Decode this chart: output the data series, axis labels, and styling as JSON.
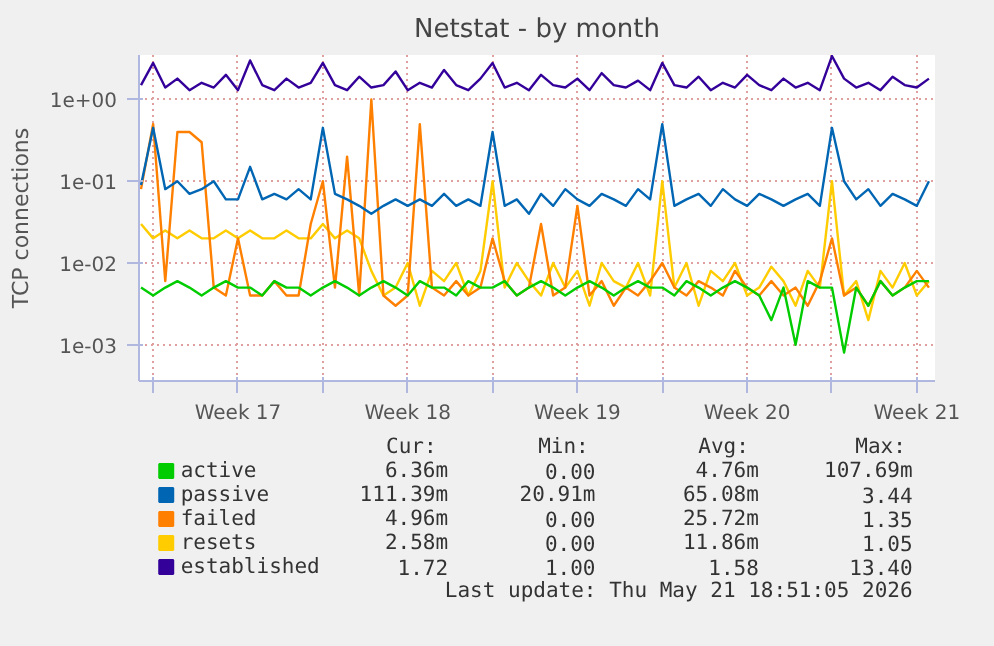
{
  "chart_data": {
    "type": "line",
    "title": "Netstat - by month",
    "ylabel": "TCP connections",
    "log": "y",
    "grid": true,
    "legend": "bottom",
    "marker": "none",
    "line_style": "solid",
    "ylim": [
      0.00036,
      3.5
    ],
    "yticks": [
      {
        "value": 0.001,
        "label": "1e-03"
      },
      {
        "value": 0.01,
        "label": "1e-02"
      },
      {
        "value": 0.1,
        "label": "1e-01"
      },
      {
        "value": 1,
        "label": "1e+00"
      }
    ],
    "xlim": [
      "2026-04-19T10:00",
      "2026-05-22T06:00"
    ],
    "xticks": [
      {
        "value": "2026-04-20",
        "label": null
      },
      {
        "value": "2026-04-23T12:00",
        "label": "Week 17"
      },
      {
        "value": "2026-04-27",
        "label": null
      },
      {
        "value": "2026-04-30T12:00",
        "label": "Week 18"
      },
      {
        "value": "2026-05-04",
        "label": null
      },
      {
        "value": "2026-05-07T12:00",
        "label": "Week 19"
      },
      {
        "value": "2026-05-11",
        "label": null
      },
      {
        "value": "2026-05-14T12:00",
        "label": "Week 20"
      },
      {
        "value": "2026-05-18",
        "label": null
      },
      {
        "value": "2026-05-21T12:00",
        "label": "Week 21"
      }
    ],
    "x": [
      "2026-04-19T12:00",
      "2026-04-20T00:00",
      "2026-04-20T12:00",
      "2026-04-21T00:00",
      "2026-04-21T12:00",
      "2026-04-22T00:00",
      "2026-04-22T12:00",
      "2026-04-23T00:00",
      "2026-04-23T12:00",
      "2026-04-24T00:00",
      "2026-04-24T12:00",
      "2026-04-25T00:00",
      "2026-04-25T12:00",
      "2026-04-26T00:00",
      "2026-04-26T12:00",
      "2026-04-27T00:00",
      "2026-04-27T12:00",
      "2026-04-28T00:00",
      "2026-04-28T12:00",
      "2026-04-29T00:00",
      "2026-04-29T12:00",
      "2026-04-30T00:00",
      "2026-04-30T12:00",
      "2026-05-01T00:00",
      "2026-05-01T12:00",
      "2026-05-02T00:00",
      "2026-05-02T12:00",
      "2026-05-03T00:00",
      "2026-05-03T12:00",
      "2026-05-04T00:00",
      "2026-05-04T12:00",
      "2026-05-05T00:00",
      "2026-05-05T12:00",
      "2026-05-06T00:00",
      "2026-05-06T12:00",
      "2026-05-07T00:00",
      "2026-05-07T12:00",
      "2026-05-08T00:00",
      "2026-05-08T12:00",
      "2026-05-09T00:00",
      "2026-05-09T12:00",
      "2026-05-10T00:00",
      "2026-05-10T12:00",
      "2026-05-11T00:00",
      "2026-05-11T12:00",
      "2026-05-12T00:00",
      "2026-05-12T12:00",
      "2026-05-13T00:00",
      "2026-05-13T12:00",
      "2026-05-14T00:00",
      "2026-05-14T12:00",
      "2026-05-15T00:00",
      "2026-05-15T12:00",
      "2026-05-16T00:00",
      "2026-05-16T12:00",
      "2026-05-17T00:00",
      "2026-05-17T12:00",
      "2026-05-18T00:00",
      "2026-05-18T12:00",
      "2026-05-19T00:00",
      "2026-05-19T12:00",
      "2026-05-20T00:00",
      "2026-05-20T12:00",
      "2026-05-21T00:00",
      "2026-05-21T12:00",
      "2026-05-22T00:00"
    ],
    "series": [
      {
        "name": "active",
        "color": "#00cc00",
        "values": [
          0.005,
          0.004,
          0.005,
          0.006,
          0.005,
          0.004,
          0.005,
          0.006,
          0.005,
          0.005,
          0.004,
          0.006,
          0.005,
          0.005,
          0.004,
          0.005,
          0.006,
          0.005,
          0.004,
          0.005,
          0.006,
          0.005,
          0.004,
          0.006,
          0.005,
          0.005,
          0.004,
          0.006,
          0.005,
          0.005,
          0.006,
          0.004,
          0.005,
          0.006,
          0.005,
          0.004,
          0.005,
          0.006,
          0.005,
          0.004,
          0.005,
          0.006,
          0.005,
          0.005,
          0.004,
          0.006,
          0.005,
          0.004,
          0.005,
          0.006,
          0.005,
          0.004,
          0.002,
          0.005,
          0.001,
          0.006,
          0.005,
          0.005,
          0.0008,
          0.005,
          0.003,
          0.006,
          0.004,
          0.005,
          0.006,
          0.006
        ]
      },
      {
        "name": "passive",
        "color": "#0066b3",
        "values": [
          0.09,
          0.45,
          0.08,
          0.1,
          0.07,
          0.08,
          0.1,
          0.06,
          0.06,
          0.15,
          0.06,
          0.07,
          0.06,
          0.08,
          0.06,
          0.45,
          0.07,
          0.06,
          0.05,
          0.04,
          0.05,
          0.06,
          0.05,
          0.06,
          0.05,
          0.07,
          0.05,
          0.06,
          0.05,
          0.4,
          0.05,
          0.06,
          0.04,
          0.07,
          0.05,
          0.08,
          0.06,
          0.05,
          0.07,
          0.06,
          0.05,
          0.08,
          0.06,
          0.5,
          0.05,
          0.06,
          0.07,
          0.05,
          0.08,
          0.06,
          0.05,
          0.07,
          0.06,
          0.05,
          0.06,
          0.07,
          0.05,
          0.45,
          0.1,
          0.06,
          0.08,
          0.05,
          0.07,
          0.06,
          0.05,
          0.1
        ]
      },
      {
        "name": "failed",
        "color": "#ff8000",
        "values": [
          0.08,
          0.5,
          0.006,
          0.4,
          0.4,
          0.3,
          0.005,
          0.004,
          0.02,
          0.004,
          0.004,
          0.006,
          0.004,
          0.004,
          0.03,
          0.1,
          0.005,
          0.2,
          0.004,
          1.0,
          0.004,
          0.003,
          0.004,
          0.5,
          0.005,
          0.004,
          0.006,
          0.004,
          0.005,
          0.02,
          0.006,
          0.004,
          0.005,
          0.03,
          0.004,
          0.005,
          0.05,
          0.004,
          0.006,
          0.003,
          0.005,
          0.004,
          0.006,
          0.01,
          0.005,
          0.004,
          0.006,
          0.005,
          0.004,
          0.008,
          0.005,
          0.004,
          0.006,
          0.004,
          0.005,
          0.003,
          0.006,
          0.02,
          0.004,
          0.005,
          0.003,
          0.006,
          0.004,
          0.005,
          0.008,
          0.005
        ]
      },
      {
        "name": "resets",
        "color": "#ffcc00",
        "values": [
          0.03,
          0.02,
          0.025,
          0.02,
          0.025,
          0.02,
          0.02,
          0.025,
          0.02,
          0.025,
          0.02,
          0.02,
          0.025,
          0.02,
          0.02,
          0.03,
          0.02,
          0.025,
          0.02,
          0.008,
          0.004,
          0.005,
          0.01,
          0.003,
          0.008,
          0.006,
          0.01,
          0.004,
          0.008,
          0.1,
          0.005,
          0.01,
          0.006,
          0.004,
          0.01,
          0.005,
          0.008,
          0.003,
          0.01,
          0.006,
          0.005,
          0.01,
          0.004,
          0.1,
          0.005,
          0.01,
          0.003,
          0.008,
          0.006,
          0.01,
          0.004,
          0.005,
          0.009,
          0.006,
          0.003,
          0.008,
          0.005,
          0.1,
          0.004,
          0.006,
          0.002,
          0.008,
          0.005,
          0.01,
          0.004,
          0.006
        ]
      },
      {
        "name": "established",
        "color": "#330099",
        "values": [
          1.5,
          2.8,
          1.4,
          1.8,
          1.3,
          1.6,
          1.4,
          2.0,
          1.3,
          3.0,
          1.5,
          1.3,
          1.8,
          1.4,
          1.6,
          2.8,
          1.5,
          1.3,
          1.9,
          1.4,
          1.5,
          2.2,
          1.3,
          1.6,
          1.4,
          2.3,
          1.5,
          1.3,
          1.8,
          2.8,
          1.4,
          1.6,
          1.3,
          2.0,
          1.5,
          1.4,
          1.8,
          1.3,
          2.1,
          1.5,
          1.4,
          1.7,
          1.3,
          2.8,
          1.5,
          1.4,
          1.9,
          1.3,
          1.6,
          1.4,
          2.0,
          1.5,
          1.3,
          1.8,
          1.4,
          1.6,
          1.3,
          3.4,
          1.8,
          1.4,
          1.6,
          1.3,
          1.9,
          1.5,
          1.4,
          1.8
        ]
      }
    ],
    "annotations": [
      "Cur:",
      "Min:",
      "Avg:",
      "Max:",
      "6.36m",
      "0.00",
      "4.76m",
      "107.69m",
      "111.39m",
      "20.91m",
      "65.08m",
      "3.44",
      "4.96m",
      "0.00",
      "25.72m",
      "1.35",
      "2.58m",
      "0.00",
      "11.86m",
      "1.05",
      "1.72",
      "1.00",
      "1.58",
      "13.40",
      "Last update: Thu May 21 18:51:05 2026"
    ]
  }
}
